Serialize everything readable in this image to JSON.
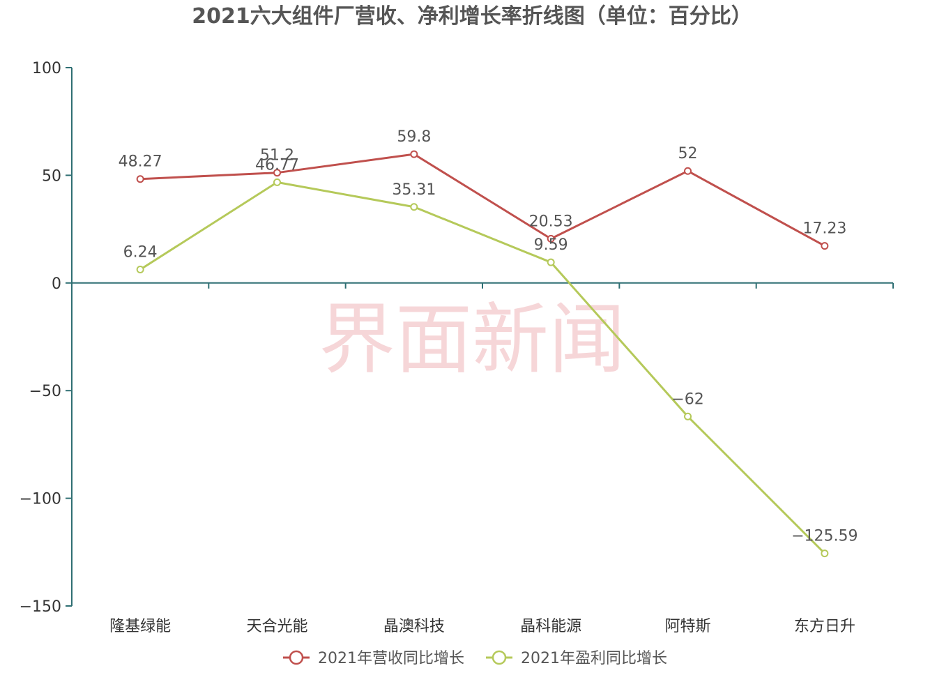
{
  "chart_data": {
    "type": "line",
    "title": "2021六大组件厂营收、净利增长率折线图（单位：百分比）",
    "categories": [
      "隆基绿能",
      "天合光能",
      "晶澳科技",
      "晶科能源",
      "阿特斯",
      "东方日升"
    ],
    "series": [
      {
        "name": "2021年营收同比增长",
        "color": "#c0504d",
        "values": [
          48.27,
          51.2,
          59.8,
          20.53,
          52,
          17.23
        ],
        "labels": [
          "48.27",
          "51.2",
          "59.8",
          "20.53",
          "52",
          "17.23"
        ]
      },
      {
        "name": "2021年盈利同比增长",
        "color": "#b5c95a",
        "values": [
          6.24,
          46.77,
          35.31,
          9.59,
          -62,
          -125.59
        ],
        "labels": [
          "6.24",
          "46.77",
          "35.31",
          "9.59",
          "−62",
          "−125.59"
        ]
      }
    ],
    "ylim": [
      -150,
      100
    ],
    "yticks": [
      100,
      50,
      0,
      -50,
      -100,
      -150
    ],
    "ytick_labels": [
      "100",
      "50",
      "0",
      "−50",
      "−100",
      "−150"
    ],
    "axis_color": "#2f6f73",
    "legend_position": "bottom",
    "grid": false,
    "watermark": "界面新闻"
  }
}
